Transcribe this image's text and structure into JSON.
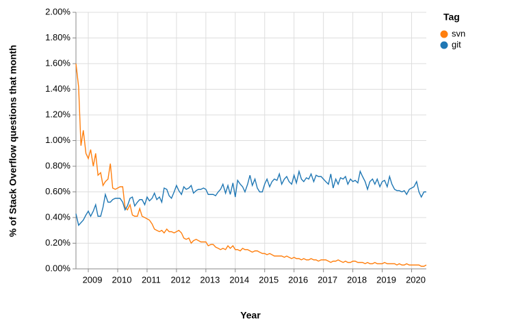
{
  "chart_data": {
    "type": "line",
    "x_label": "Year",
    "y_label": "% of Stack Overflow questions that month",
    "legend_title": "Tag",
    "legend": "top-right",
    "grid": true,
    "xlim": [
      2008.58,
      2020.5
    ],
    "xticks": [
      2009,
      2010,
      2011,
      2012,
      2013,
      2014,
      2015,
      2016,
      2017,
      2018,
      2019,
      2020
    ],
    "ylim": [
      0,
      2
    ],
    "yticks": [
      {
        "value": 0,
        "label": "0.00%"
      },
      {
        "value": 0.2,
        "label": "0.20%"
      },
      {
        "value": 0.4,
        "label": "0.40%"
      },
      {
        "value": 0.6,
        "label": "0.60%"
      },
      {
        "value": 0.8,
        "label": "0.80%"
      },
      {
        "value": 1.0,
        "label": "1.00%"
      },
      {
        "value": 1.2,
        "label": "1.20%"
      },
      {
        "value": 1.4,
        "label": "1.40%"
      },
      {
        "value": 1.6,
        "label": "1.60%"
      },
      {
        "value": 1.8,
        "label": "1.80%"
      },
      {
        "value": 2.0,
        "label": "2.00%"
      }
    ],
    "x": [
      2008.58,
      2008.67,
      2008.75,
      2008.83,
      2008.92,
      2009.0,
      2009.08,
      2009.17,
      2009.25,
      2009.33,
      2009.42,
      2009.5,
      2009.58,
      2009.67,
      2009.75,
      2009.83,
      2009.92,
      2010.0,
      2010.08,
      2010.17,
      2010.25,
      2010.33,
      2010.42,
      2010.5,
      2010.58,
      2010.67,
      2010.75,
      2010.83,
      2010.92,
      2011.0,
      2011.08,
      2011.17,
      2011.25,
      2011.33,
      2011.42,
      2011.5,
      2011.58,
      2011.67,
      2011.75,
      2011.83,
      2011.92,
      2012.0,
      2012.08,
      2012.17,
      2012.25,
      2012.33,
      2012.42,
      2012.5,
      2012.58,
      2012.67,
      2012.75,
      2012.83,
      2012.92,
      2013.0,
      2013.08,
      2013.17,
      2013.25,
      2013.33,
      2013.42,
      2013.5,
      2013.58,
      2013.67,
      2013.75,
      2013.83,
      2013.92,
      2014.0,
      2014.08,
      2014.17,
      2014.25,
      2014.33,
      2014.42,
      2014.5,
      2014.58,
      2014.67,
      2014.75,
      2014.83,
      2014.92,
      2015.0,
      2015.08,
      2015.17,
      2015.25,
      2015.33,
      2015.42,
      2015.5,
      2015.58,
      2015.67,
      2015.75,
      2015.83,
      2015.92,
      2016.0,
      2016.08,
      2016.17,
      2016.25,
      2016.33,
      2016.42,
      2016.5,
      2016.58,
      2016.67,
      2016.75,
      2016.83,
      2016.92,
      2017.0,
      2017.08,
      2017.17,
      2017.25,
      2017.33,
      2017.42,
      2017.5,
      2017.58,
      2017.67,
      2017.75,
      2017.83,
      2017.92,
      2018.0,
      2018.08,
      2018.17,
      2018.25,
      2018.33,
      2018.42,
      2018.5,
      2018.58,
      2018.67,
      2018.75,
      2018.83,
      2018.92,
      2019.0,
      2019.08,
      2019.17,
      2019.25,
      2019.33,
      2019.42,
      2019.5,
      2019.58,
      2019.67,
      2019.75,
      2019.83,
      2019.92,
      2020.0,
      2020.08,
      2020.17,
      2020.25,
      2020.33,
      2020.42,
      2020.5
    ],
    "series": [
      {
        "name": "svn",
        "color": "#ff7f0e",
        "values": [
          1.6,
          1.42,
          0.96,
          1.08,
          0.9,
          0.86,
          0.93,
          0.8,
          0.9,
          0.73,
          0.75,
          0.65,
          0.68,
          0.7,
          0.82,
          0.63,
          0.62,
          0.63,
          0.64,
          0.64,
          0.48,
          0.46,
          0.5,
          0.42,
          0.41,
          0.41,
          0.47,
          0.41,
          0.4,
          0.39,
          0.38,
          0.35,
          0.31,
          0.3,
          0.29,
          0.3,
          0.28,
          0.31,
          0.29,
          0.29,
          0.28,
          0.29,
          0.3,
          0.28,
          0.24,
          0.23,
          0.24,
          0.2,
          0.22,
          0.23,
          0.22,
          0.21,
          0.21,
          0.21,
          0.18,
          0.19,
          0.19,
          0.17,
          0.16,
          0.15,
          0.16,
          0.15,
          0.18,
          0.16,
          0.18,
          0.15,
          0.15,
          0.14,
          0.16,
          0.15,
          0.15,
          0.14,
          0.13,
          0.14,
          0.14,
          0.13,
          0.12,
          0.12,
          0.11,
          0.12,
          0.11,
          0.1,
          0.1,
          0.1,
          0.1,
          0.09,
          0.1,
          0.09,
          0.08,
          0.09,
          0.08,
          0.08,
          0.07,
          0.08,
          0.07,
          0.07,
          0.08,
          0.07,
          0.07,
          0.06,
          0.07,
          0.07,
          0.07,
          0.06,
          0.05,
          0.06,
          0.06,
          0.07,
          0.06,
          0.05,
          0.06,
          0.05,
          0.05,
          0.06,
          0.06,
          0.05,
          0.05,
          0.05,
          0.04,
          0.05,
          0.04,
          0.04,
          0.05,
          0.04,
          0.04,
          0.04,
          0.05,
          0.04,
          0.04,
          0.04,
          0.04,
          0.03,
          0.04,
          0.03,
          0.03,
          0.04,
          0.03,
          0.03,
          0.03,
          0.03,
          0.03,
          0.02,
          0.02,
          0.03
        ]
      },
      {
        "name": "git",
        "color": "#1f77b4",
        "values": [
          0.43,
          0.34,
          0.36,
          0.38,
          0.42,
          0.45,
          0.41,
          0.45,
          0.5,
          0.41,
          0.41,
          0.48,
          0.58,
          0.52,
          0.52,
          0.54,
          0.55,
          0.55,
          0.55,
          0.52,
          0.46,
          0.49,
          0.55,
          0.56,
          0.49,
          0.52,
          0.54,
          0.54,
          0.5,
          0.56,
          0.53,
          0.55,
          0.59,
          0.54,
          0.56,
          0.52,
          0.63,
          0.62,
          0.57,
          0.55,
          0.6,
          0.65,
          0.61,
          0.58,
          0.64,
          0.62,
          0.63,
          0.65,
          0.59,
          0.61,
          0.62,
          0.62,
          0.63,
          0.62,
          0.58,
          0.58,
          0.58,
          0.57,
          0.6,
          0.62,
          0.66,
          0.59,
          0.65,
          0.58,
          0.67,
          0.56,
          0.69,
          0.66,
          0.64,
          0.6,
          0.66,
          0.73,
          0.65,
          0.7,
          0.63,
          0.6,
          0.6,
          0.66,
          0.7,
          0.64,
          0.68,
          0.7,
          0.69,
          0.74,
          0.66,
          0.7,
          0.72,
          0.68,
          0.66,
          0.73,
          0.67,
          0.76,
          0.7,
          0.68,
          0.71,
          0.7,
          0.74,
          0.68,
          0.73,
          0.72,
          0.72,
          0.7,
          0.68,
          0.66,
          0.74,
          0.63,
          0.7,
          0.66,
          0.71,
          0.7,
          0.72,
          0.66,
          0.7,
          0.68,
          0.69,
          0.67,
          0.76,
          0.72,
          0.68,
          0.62,
          0.68,
          0.7,
          0.66,
          0.7,
          0.64,
          0.68,
          0.69,
          0.64,
          0.72,
          0.66,
          0.62,
          0.61,
          0.61,
          0.6,
          0.61,
          0.58,
          0.62,
          0.63,
          0.64,
          0.68,
          0.6,
          0.56,
          0.6,
          0.6
        ]
      }
    ]
  }
}
